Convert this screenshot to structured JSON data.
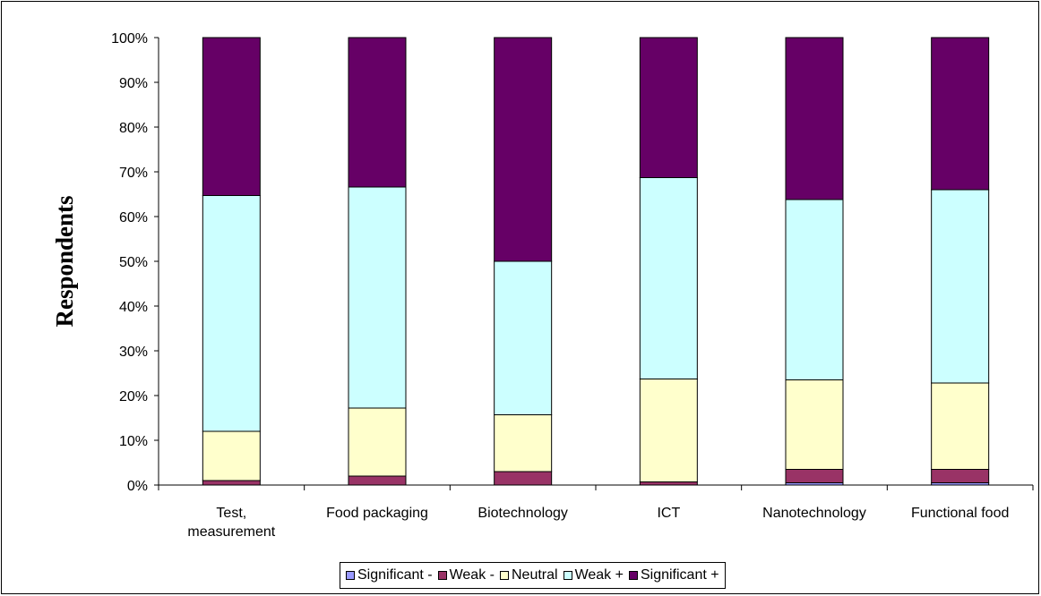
{
  "chart_data": {
    "type": "bar",
    "stacked": true,
    "normalized": true,
    "title": "",
    "xlabel": "",
    "ylabel": "Respondents",
    "ylim": [
      0,
      100
    ],
    "y_ticks": [
      "0%",
      "10%",
      "20%",
      "30%",
      "40%",
      "50%",
      "60%",
      "70%",
      "80%",
      "90%",
      "100%"
    ],
    "categories": [
      "Test, measurement",
      "Food packaging",
      "Biotechnology",
      "ICT",
      "Nanotechnology",
      "Functional food"
    ],
    "category_lines": [
      [
        "Test,",
        "measurement"
      ],
      [
        "Food packaging"
      ],
      [
        "Biotechnology"
      ],
      [
        "ICT"
      ],
      [
        "Nanotechnology"
      ],
      [
        "Functional food"
      ]
    ],
    "series": [
      {
        "name": "Significant -",
        "color": "#9999FF",
        "values": [
          0,
          0,
          0,
          0,
          0.5,
          0.5
        ]
      },
      {
        "name": "Weak -",
        "color": "#993366",
        "values": [
          1,
          2,
          3,
          0.7,
          3,
          3
        ]
      },
      {
        "name": "Neutral",
        "color": "#FFFFCC",
        "values": [
          11,
          15.2,
          12.7,
          23,
          20,
          19.3
        ]
      },
      {
        "name": "Weak +",
        "color": "#CCFFFF",
        "values": [
          52.7,
          49.4,
          34.3,
          45,
          40.3,
          43.2
        ]
      },
      {
        "name": "Significant +",
        "color": "#660066",
        "values": [
          35.3,
          33.4,
          50,
          31.3,
          36.2,
          34
        ]
      }
    ],
    "grid": false,
    "legend_position": "bottom"
  }
}
